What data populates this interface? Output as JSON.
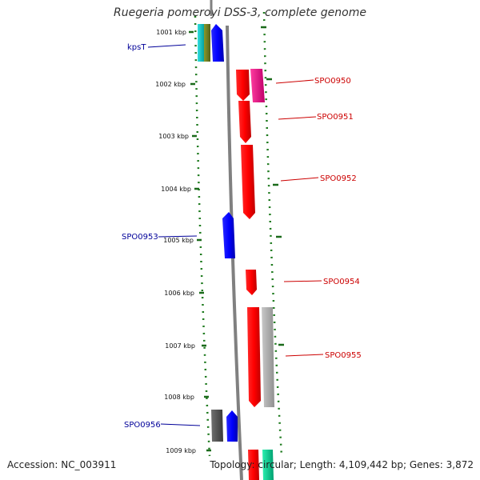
{
  "title": "Ruegeria pomeroyi DSS-3, complete genome",
  "accession": "Accession: NC_003911",
  "summary": "Topology: circular; Length: 4,109,442 bp; Genes: 3,872",
  "colors": {
    "forward_label": "#cc0000",
    "reverse_label": "#000099",
    "backbone": "#808080",
    "tick": "#1a6a1a",
    "scale_dots": "#1e7a1e"
  },
  "scale": {
    "ticks": [
      {
        "kbp": 1001,
        "label": "1001 kbp"
      },
      {
        "kbp": 1002,
        "label": "1002 kbp"
      },
      {
        "kbp": 1003,
        "label": "1003 kbp"
      },
      {
        "kbp": 1004,
        "label": "1004 kbp"
      },
      {
        "kbp": 1005,
        "label": "1005 kbp"
      },
      {
        "kbp": 1006,
        "label": "1006 kbp"
      },
      {
        "kbp": 1007,
        "label": "1007 kbp"
      },
      {
        "kbp": 1008,
        "label": "1008 kbp"
      },
      {
        "kbp": 1009,
        "label": "1009 kbp"
      }
    ]
  },
  "labels": {
    "kpsT": "kpsT",
    "SPO0950": "SPO0950",
    "SPO0951": "SPO0951",
    "SPO0952": "SPO0952",
    "SPO0953": "SPO0953",
    "SPO0954": "SPO0954",
    "SPO0955": "SPO0955",
    "SPO0956": "SPO0956"
  }
}
